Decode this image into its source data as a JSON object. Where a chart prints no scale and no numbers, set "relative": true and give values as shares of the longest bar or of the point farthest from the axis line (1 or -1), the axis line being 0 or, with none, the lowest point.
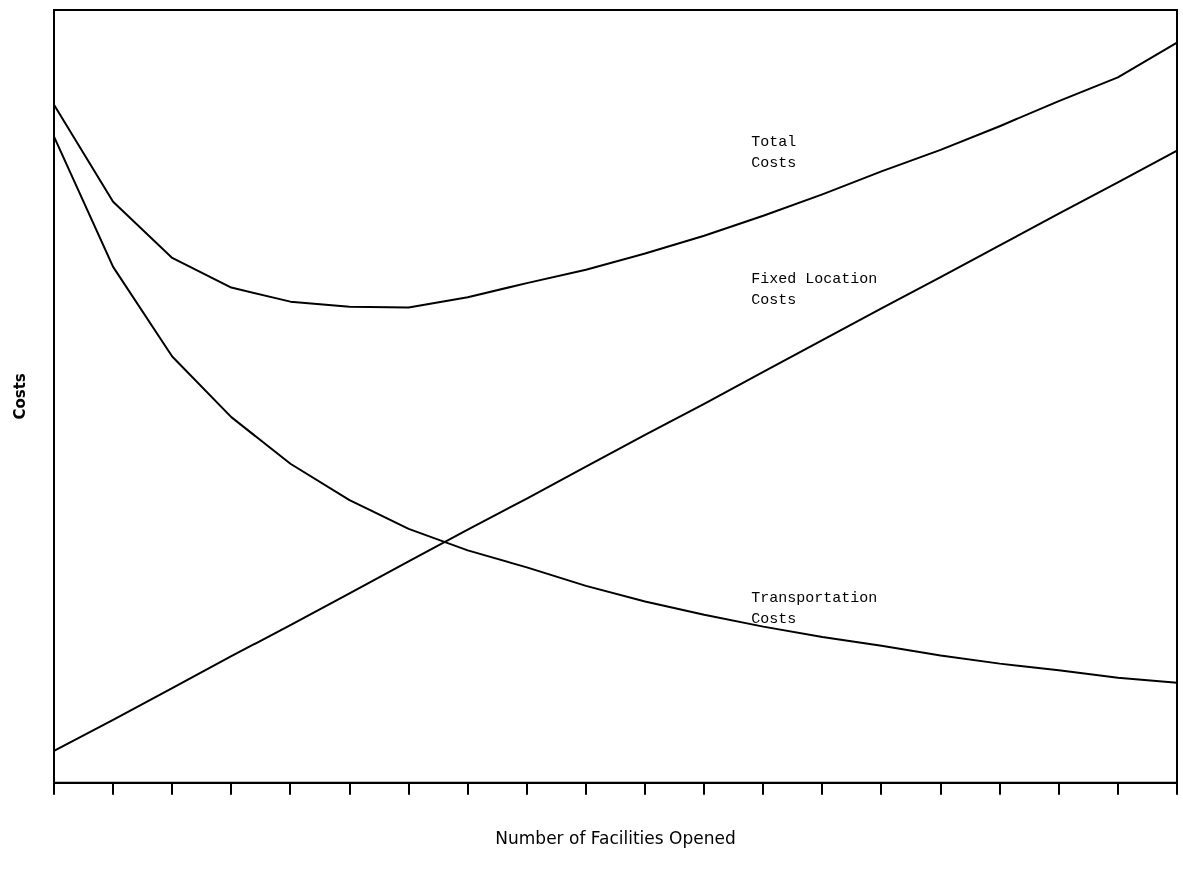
{
  "chart_data": {
    "type": "line",
    "xlabel": "Number of Facilities Opened",
    "ylabel": "Costs",
    "relative": true,
    "legend": false,
    "grid": false,
    "marker": "none",
    "line_style": "solid",
    "categories": [
      null,
      null,
      null,
      null,
      null,
      null,
      null,
      null,
      null,
      null,
      null,
      null,
      null,
      null,
      null,
      null,
      null,
      null,
      null,
      null
    ],
    "series": [
      {
        "name": "Total Costs",
        "color": "#000000",
        "values": [
          0.916,
          0.785,
          0.709,
          0.669,
          0.65,
          0.643,
          0.642,
          0.656,
          0.675,
          0.693,
          0.715,
          0.739,
          0.766,
          0.795,
          0.826,
          0.855,
          0.887,
          0.921,
          0.953,
          1
        ]
      },
      {
        "name": "Fixed Location Costs",
        "color": "#000000",
        "values": [
          0.043,
          0.085,
          0.128,
          0.171,
          0.213,
          0.256,
          0.299,
          0.342,
          0.384,
          0.427,
          0.47,
          0.512,
          0.555,
          0.598,
          0.641,
          0.683,
          0.726,
          0.769,
          0.811,
          0.854
        ]
      },
      {
        "name": "Transportation Costs",
        "color": "#000000",
        "values": [
          0.873,
          0.697,
          0.576,
          0.494,
          0.431,
          0.382,
          0.343,
          0.314,
          0.291,
          0.266,
          0.245,
          0.227,
          0.211,
          0.197,
          0.185,
          0.172,
          0.161,
          0.152,
          0.142,
          0.135
        ]
      }
    ]
  }
}
